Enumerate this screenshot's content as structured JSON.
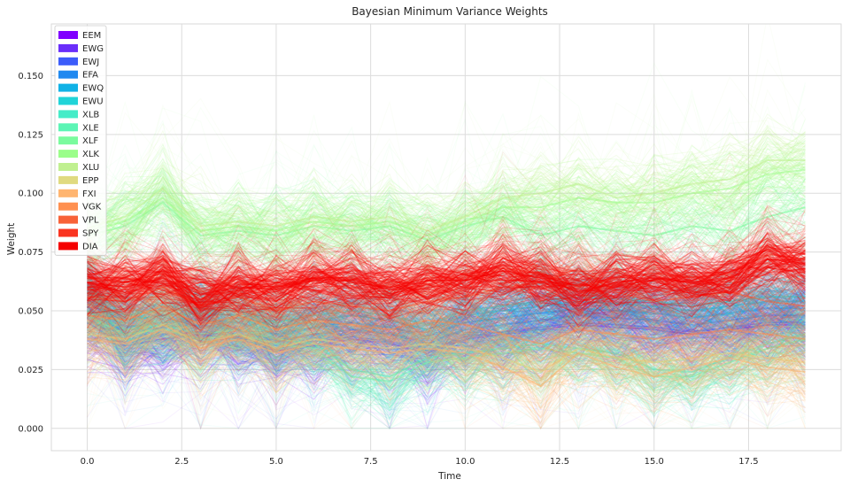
{
  "chart_data": {
    "type": "line",
    "title": "Bayesian Minimum Variance Weights",
    "xlabel": "Time",
    "ylabel": "Weight",
    "xlim": [
      -0.95,
      19.95
    ],
    "ylim": [
      -0.0095,
      0.172
    ],
    "x_ticks": [
      0.0,
      2.5,
      5.0,
      7.5,
      10.0,
      12.5,
      15.0,
      17.5
    ],
    "x_tick_labels": [
      "0.0",
      "2.5",
      "5.0",
      "7.5",
      "10.0",
      "12.5",
      "15.0",
      "17.5"
    ],
    "y_ticks": [
      0.0,
      0.025,
      0.05,
      0.075,
      0.1,
      0.125,
      0.15
    ],
    "y_tick_labels": [
      "0.000",
      "0.025",
      "0.050",
      "0.075",
      "0.100",
      "0.125",
      "0.150"
    ],
    "grid": true,
    "legend_position": "top-left",
    "x": [
      0,
      1,
      2,
      3,
      4,
      5,
      6,
      7,
      8,
      9,
      10,
      11,
      12,
      13,
      14,
      15,
      16,
      17,
      18,
      19
    ],
    "series": [
      {
        "name": "EEM",
        "color": "#8000ff",
        "values": [
          0.045,
          0.035,
          0.038,
          0.04,
          0.038,
          0.033,
          0.035,
          0.038,
          0.036,
          0.032,
          0.038,
          0.04,
          0.042,
          0.044,
          0.043,
          0.042,
          0.04,
          0.042,
          0.044,
          0.044
        ]
      },
      {
        "name": "EWG",
        "color": "#6a2dfa",
        "values": [
          0.047,
          0.036,
          0.04,
          0.041,
          0.039,
          0.034,
          0.037,
          0.039,
          0.037,
          0.033,
          0.039,
          0.041,
          0.043,
          0.045,
          0.044,
          0.043,
          0.041,
          0.043,
          0.045,
          0.045
        ]
      },
      {
        "name": "EWJ",
        "color": "#3c5cfa",
        "values": [
          0.052,
          0.04,
          0.043,
          0.044,
          0.042,
          0.037,
          0.04,
          0.042,
          0.04,
          0.036,
          0.042,
          0.044,
          0.046,
          0.048,
          0.047,
          0.046,
          0.044,
          0.046,
          0.048,
          0.048
        ]
      },
      {
        "name": "EFA",
        "color": "#2089f0",
        "values": [
          0.055,
          0.043,
          0.045,
          0.046,
          0.045,
          0.04,
          0.043,
          0.045,
          0.043,
          0.039,
          0.045,
          0.047,
          0.049,
          0.051,
          0.05,
          0.049,
          0.047,
          0.049,
          0.051,
          0.051
        ]
      },
      {
        "name": "EWQ",
        "color": "#10b2e6",
        "values": [
          0.058,
          0.046,
          0.048,
          0.049,
          0.048,
          0.043,
          0.046,
          0.048,
          0.046,
          0.042,
          0.048,
          0.05,
          0.052,
          0.054,
          0.053,
          0.052,
          0.05,
          0.052,
          0.054,
          0.054
        ]
      },
      {
        "name": "EWU",
        "color": "#20d4d8",
        "values": [
          0.06,
          0.048,
          0.05,
          0.051,
          0.05,
          0.045,
          0.048,
          0.05,
          0.048,
          0.044,
          0.05,
          0.052,
          0.054,
          0.056,
          0.055,
          0.054,
          0.052,
          0.054,
          0.056,
          0.056
        ]
      },
      {
        "name": "XLB",
        "color": "#45ecc8",
        "values": [
          0.05,
          0.042,
          0.044,
          0.04,
          0.042,
          0.038,
          0.036,
          0.025,
          0.022,
          0.03,
          0.032,
          0.034,
          0.036,
          0.034,
          0.032,
          0.025,
          0.024,
          0.03,
          0.036,
          0.04
        ]
      },
      {
        "name": "XLE",
        "color": "#5cf5b5",
        "values": [
          0.048,
          0.04,
          0.042,
          0.038,
          0.04,
          0.036,
          0.034,
          0.022,
          0.02,
          0.028,
          0.03,
          0.032,
          0.034,
          0.032,
          0.03,
          0.022,
          0.022,
          0.028,
          0.034,
          0.038
        ]
      },
      {
        "name": "XLF",
        "color": "#7afb9e",
        "values": [
          0.082,
          0.086,
          0.096,
          0.082,
          0.084,
          0.082,
          0.086,
          0.084,
          0.086,
          0.08,
          0.086,
          0.09,
          0.082,
          0.086,
          0.084,
          0.082,
          0.086,
          0.084,
          0.09,
          0.094
        ]
      },
      {
        "name": "XLK",
        "color": "#9bfe8a",
        "values": [
          0.084,
          0.088,
          0.098,
          0.084,
          0.086,
          0.084,
          0.088,
          0.086,
          0.088,
          0.082,
          0.088,
          0.094,
          0.094,
          0.098,
          0.096,
          0.096,
          0.1,
          0.102,
          0.108,
          0.11
        ]
      },
      {
        "name": "XLU",
        "color": "#c0f090",
        "values": [
          0.085,
          0.09,
          0.102,
          0.086,
          0.088,
          0.086,
          0.09,
          0.088,
          0.09,
          0.084,
          0.09,
          0.098,
          0.1,
          0.104,
          0.098,
          0.1,
          0.104,
          0.106,
          0.114,
          0.114
        ]
      },
      {
        "name": "EPP",
        "color": "#e0da80",
        "values": [
          0.04,
          0.038,
          0.044,
          0.036,
          0.04,
          0.034,
          0.038,
          0.036,
          0.034,
          0.036,
          0.034,
          0.03,
          0.024,
          0.034,
          0.03,
          0.028,
          0.03,
          0.032,
          0.03,
          0.028
        ]
      },
      {
        "name": "FXI",
        "color": "#ffb570",
        "values": [
          0.038,
          0.036,
          0.042,
          0.034,
          0.038,
          0.032,
          0.036,
          0.034,
          0.032,
          0.034,
          0.032,
          0.026,
          0.018,
          0.032,
          0.026,
          0.022,
          0.026,
          0.03,
          0.026,
          0.024
        ]
      },
      {
        "name": "VGK",
        "color": "#ff9050",
        "values": [
          0.048,
          0.046,
          0.052,
          0.044,
          0.048,
          0.042,
          0.046,
          0.044,
          0.042,
          0.046,
          0.044,
          0.04,
          0.036,
          0.042,
          0.04,
          0.038,
          0.04,
          0.042,
          0.04,
          0.038
        ]
      },
      {
        "name": "VPL",
        "color": "#f86238",
        "values": [
          0.056,
          0.054,
          0.06,
          0.052,
          0.056,
          0.05,
          0.054,
          0.052,
          0.05,
          0.054,
          0.056,
          0.06,
          0.062,
          0.068,
          0.058,
          0.054,
          0.056,
          0.058,
          0.054,
          0.052
        ]
      },
      {
        "name": "SPY",
        "color": "#fa3420",
        "values": [
          0.064,
          0.062,
          0.066,
          0.058,
          0.062,
          0.06,
          0.064,
          0.064,
          0.06,
          0.064,
          0.064,
          0.068,
          0.066,
          0.06,
          0.064,
          0.066,
          0.064,
          0.066,
          0.074,
          0.072
        ]
      },
      {
        "name": "DIA",
        "color": "#f50000",
        "values": [
          0.062,
          0.06,
          0.064,
          0.057,
          0.06,
          0.059,
          0.063,
          0.063,
          0.059,
          0.063,
          0.063,
          0.067,
          0.064,
          0.058,
          0.062,
          0.064,
          0.062,
          0.064,
          0.072,
          0.07
        ]
      }
    ]
  }
}
